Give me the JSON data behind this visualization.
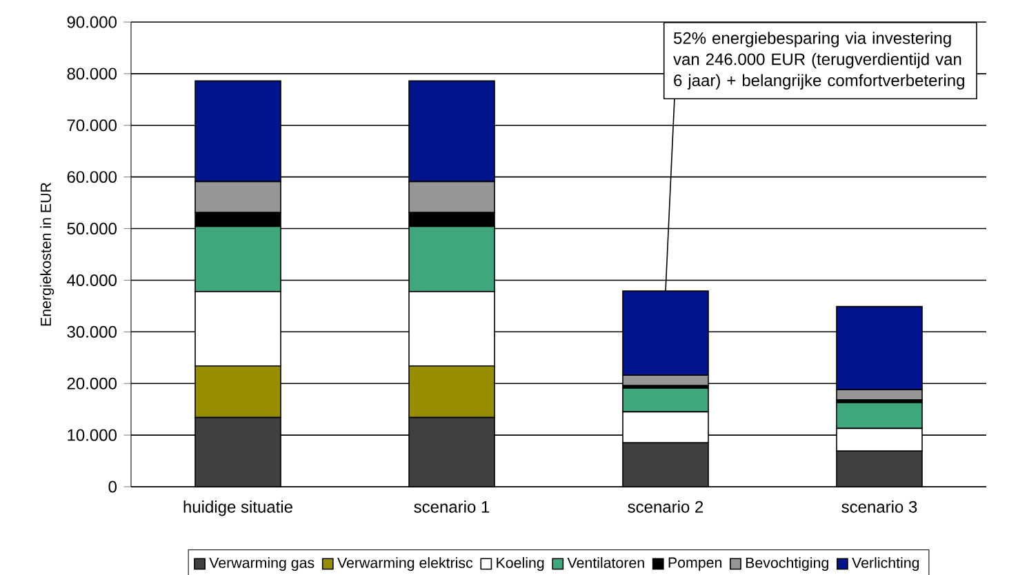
{
  "chart_data": {
    "type": "bar",
    "stacked": true,
    "ylabel": "Energiekosten in EUR",
    "categories": [
      "huidige situatie",
      "scenario 1",
      "scenario 2",
      "scenario 3"
    ],
    "series": [
      {
        "name": "Verwarming gas",
        "color": "#404040",
        "values": [
          13400,
          13400,
          8500,
          6900
        ]
      },
      {
        "name": "Verwarming elektrisc",
        "color": "#968e00",
        "values": [
          10000,
          10000,
          0,
          0
        ]
      },
      {
        "name": "Koeling",
        "color": "#ffffff",
        "values": [
          14400,
          14400,
          6000,
          4400
        ]
      },
      {
        "name": "Ventilatoren",
        "color": "#3fa77b",
        "values": [
          12600,
          12600,
          4600,
          5000
        ]
      },
      {
        "name": "Pompen",
        "color": "#000000",
        "values": [
          2700,
          2700,
          500,
          500
        ]
      },
      {
        "name": "Bevochtiging",
        "color": "#969696",
        "values": [
          6000,
          6000,
          2000,
          2000
        ]
      },
      {
        "name": "Verlichting",
        "color": "#02148c",
        "values": [
          19500,
          19500,
          16300,
          16100
        ]
      }
    ],
    "ylim": [
      0,
      90000
    ],
    "yticks": [
      0,
      {
        "value": 10000,
        "label": "10.000"
      },
      {
        "value": 20000,
        "label": "20.000"
      },
      {
        "value": 30000,
        "label": "30.000"
      },
      {
        "value": 40000,
        "label": "40.000"
      },
      {
        "value": 50000,
        "label": "50.000"
      },
      {
        "value": 60000,
        "label": "60.000"
      },
      {
        "value": 70000,
        "label": "70.000"
      },
      {
        "value": 80000,
        "label": "80.000"
      },
      {
        "value": 90000,
        "label": "90.000"
      }
    ],
    "grid": "y",
    "legend": "bottom",
    "annotations": [
      {
        "text": "52% energiebesparing via investering van 246.000 EUR (terugverdientijd van 6 jaar) + belangrijke comfortverbetering",
        "x": "scenario 2",
        "y": 37900
      }
    ]
  }
}
